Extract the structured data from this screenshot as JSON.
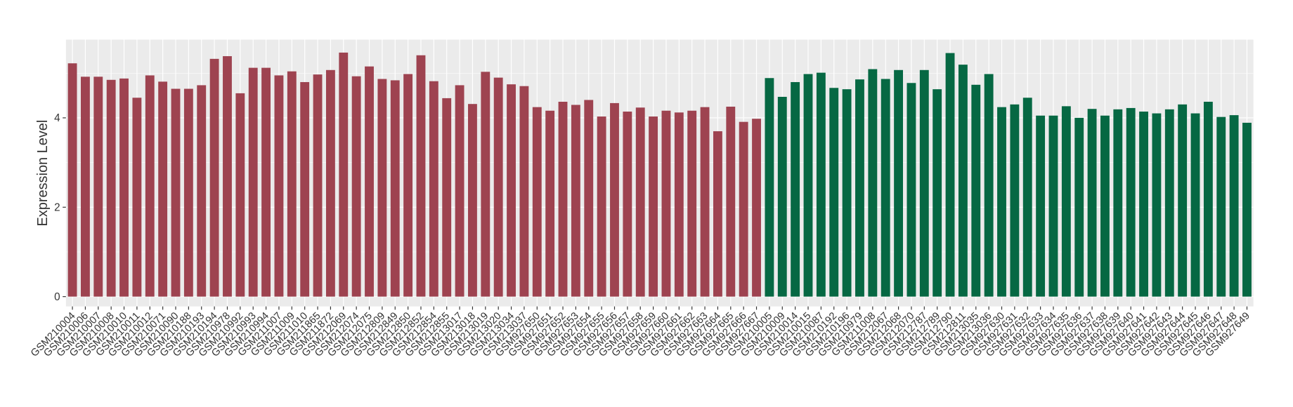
{
  "chart_data": {
    "type": "bar",
    "ylabel": "Expression Level",
    "categories": [
      "GSM210004",
      "GSM210006",
      "GSM210007",
      "GSM210008",
      "GSM210010",
      "GSM210011",
      "GSM210012",
      "GSM210071",
      "GSM210090",
      "GSM210188",
      "GSM210193",
      "GSM210194",
      "GSM210978",
      "GSM210992",
      "GSM210993",
      "GSM210994",
      "GSM211007",
      "GSM211009",
      "GSM211010",
      "GSM211865",
      "GSM211872",
      "GSM212069",
      "GSM212074",
      "GSM212075",
      "GSM212809",
      "GSM212849",
      "GSM212850",
      "GSM212852",
      "GSM212854",
      "GSM212855",
      "GSM213017",
      "GSM213018",
      "GSM213019",
      "GSM213020",
      "GSM213034",
      "GSM213037",
      "GSM927650",
      "GSM927651",
      "GSM927652",
      "GSM927653",
      "GSM927654",
      "GSM927655",
      "GSM927656",
      "GSM927657",
      "GSM927658",
      "GSM927659",
      "GSM927660",
      "GSM927661",
      "GSM927662",
      "GSM927663",
      "GSM927664",
      "GSM927665",
      "GSM927666",
      "GSM927667",
      "GSM210005",
      "GSM210009",
      "GSM210014",
      "GSM210015",
      "GSM210087",
      "GSM210192",
      "GSM210196",
      "GSM210979",
      "GSM211008",
      "GSM212067",
      "GSM212068",
      "GSM212070",
      "GSM212787",
      "GSM212789",
      "GSM212790",
      "GSM212811",
      "GSM213035",
      "GSM213036",
      "GSM927630",
      "GSM927631",
      "GSM927632",
      "GSM927633",
      "GSM927634",
      "GSM927635",
      "GSM927636",
      "GSM927637",
      "GSM927638",
      "GSM927639",
      "GSM927640",
      "GSM927641",
      "GSM927642",
      "GSM927643",
      "GSM927644",
      "GSM927645",
      "GSM927646",
      "GSM927647",
      "GSM927648",
      "GSM927649"
    ],
    "series": [
      {
        "color": "#9e4350",
        "values": [
          5.22,
          4.92,
          4.92,
          4.85,
          4.88,
          4.45,
          4.95,
          4.81,
          4.65,
          4.65,
          4.73,
          5.32,
          5.38,
          4.55,
          5.12,
          5.12,
          4.95,
          5.04,
          4.8,
          4.97,
          5.07,
          5.46,
          4.93,
          5.15,
          4.87,
          4.84,
          4.98,
          5.4,
          4.82,
          4.44,
          4.73,
          4.31,
          5.03,
          4.9,
          4.75,
          4.71,
          4.24,
          4.16,
          4.36,
          4.29,
          4.4,
          4.03,
          4.33,
          4.14,
          4.23,
          4.03,
          4.16,
          4.12,
          4.16,
          4.24,
          3.7,
          4.25,
          3.91,
          3.98,
          null,
          null,
          null,
          null,
          null,
          null,
          null,
          null,
          null,
          null,
          null,
          null,
          null,
          null,
          null,
          null,
          null,
          null,
          null,
          null,
          null,
          null,
          null,
          null,
          null,
          null,
          null,
          null,
          null,
          null,
          null,
          null,
          null,
          null,
          null,
          null,
          null,
          null
        ]
      },
      {
        "color": "#066843",
        "values": [
          null,
          null,
          null,
          null,
          null,
          null,
          null,
          null,
          null,
          null,
          null,
          null,
          null,
          null,
          null,
          null,
          null,
          null,
          null,
          null,
          null,
          null,
          null,
          null,
          null,
          null,
          null,
          null,
          null,
          null,
          null,
          null,
          null,
          null,
          null,
          null,
          null,
          null,
          null,
          null,
          null,
          null,
          null,
          null,
          null,
          null,
          null,
          null,
          null,
          null,
          null,
          null,
          null,
          null,
          4.89,
          4.47,
          4.8,
          4.98,
          5.01,
          4.67,
          4.64,
          4.86,
          5.09,
          4.87,
          5.07,
          4.78,
          5.07,
          4.64,
          5.45,
          5.19,
          4.74,
          4.98,
          4.24,
          4.3,
          4.45,
          4.05,
          4.05,
          4.26,
          4.0,
          4.2,
          4.05,
          4.19,
          4.22,
          4.14,
          4.1,
          4.19,
          4.3,
          4.1,
          4.36,
          4.02,
          4.06,
          3.89
        ]
      }
    ],
    "ylim": [
      -0.22,
      5.75
    ],
    "yticks": [
      0,
      2,
      4
    ],
    "grid": true
  }
}
